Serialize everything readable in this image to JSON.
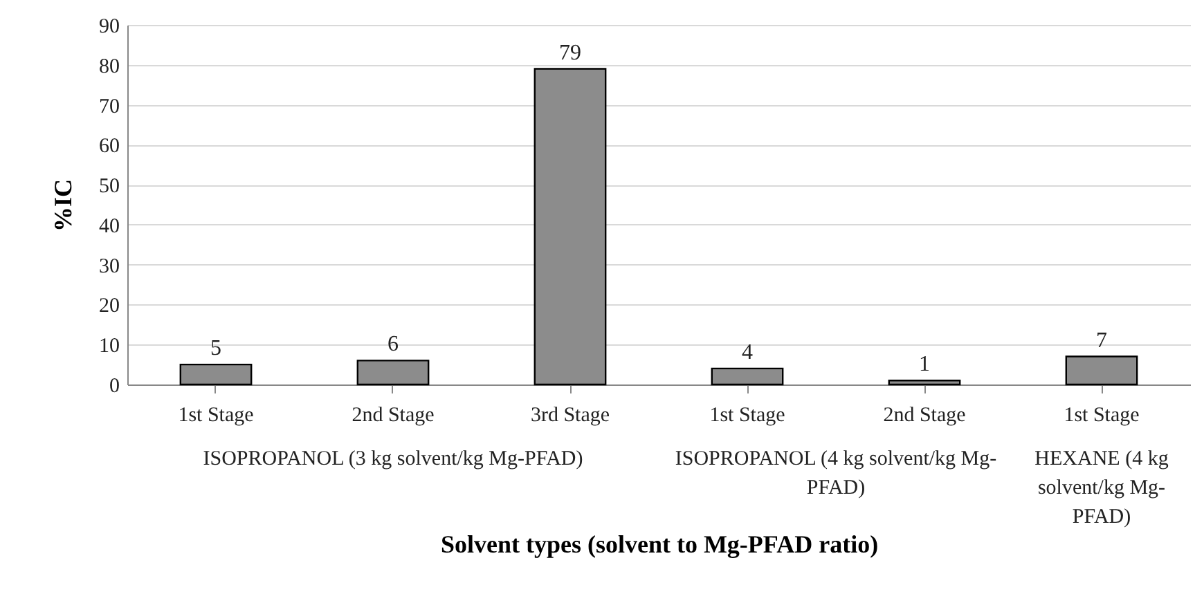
{
  "chart_data": {
    "type": "bar",
    "xlabel": "Solvent types (solvent to Mg-PFAD ratio)",
    "ylabel": "%IC",
    "categories": [
      "1st Stage",
      "2nd Stage",
      "3rd Stage",
      "1st Stage",
      "2nd Stage",
      "1st Stage"
    ],
    "values": [
      5,
      6,
      79,
      4,
      1,
      7
    ],
    "color": "#8c8c8c",
    "data_labels": true,
    "ylim": [
      0,
      90
    ],
    "yticks": [
      0,
      10,
      20,
      30,
      40,
      50,
      60,
      70,
      80,
      90
    ],
    "grid": "y",
    "annotations": [
      "ISOPROPANOL (3 kg solvent/kg Mg-PFAD)",
      "ISOPROPANOL (4 kg solvent/kg Mg-PFAD)",
      "HEXANE (4 kg solvent/kg Mg-PFAD)"
    ]
  }
}
